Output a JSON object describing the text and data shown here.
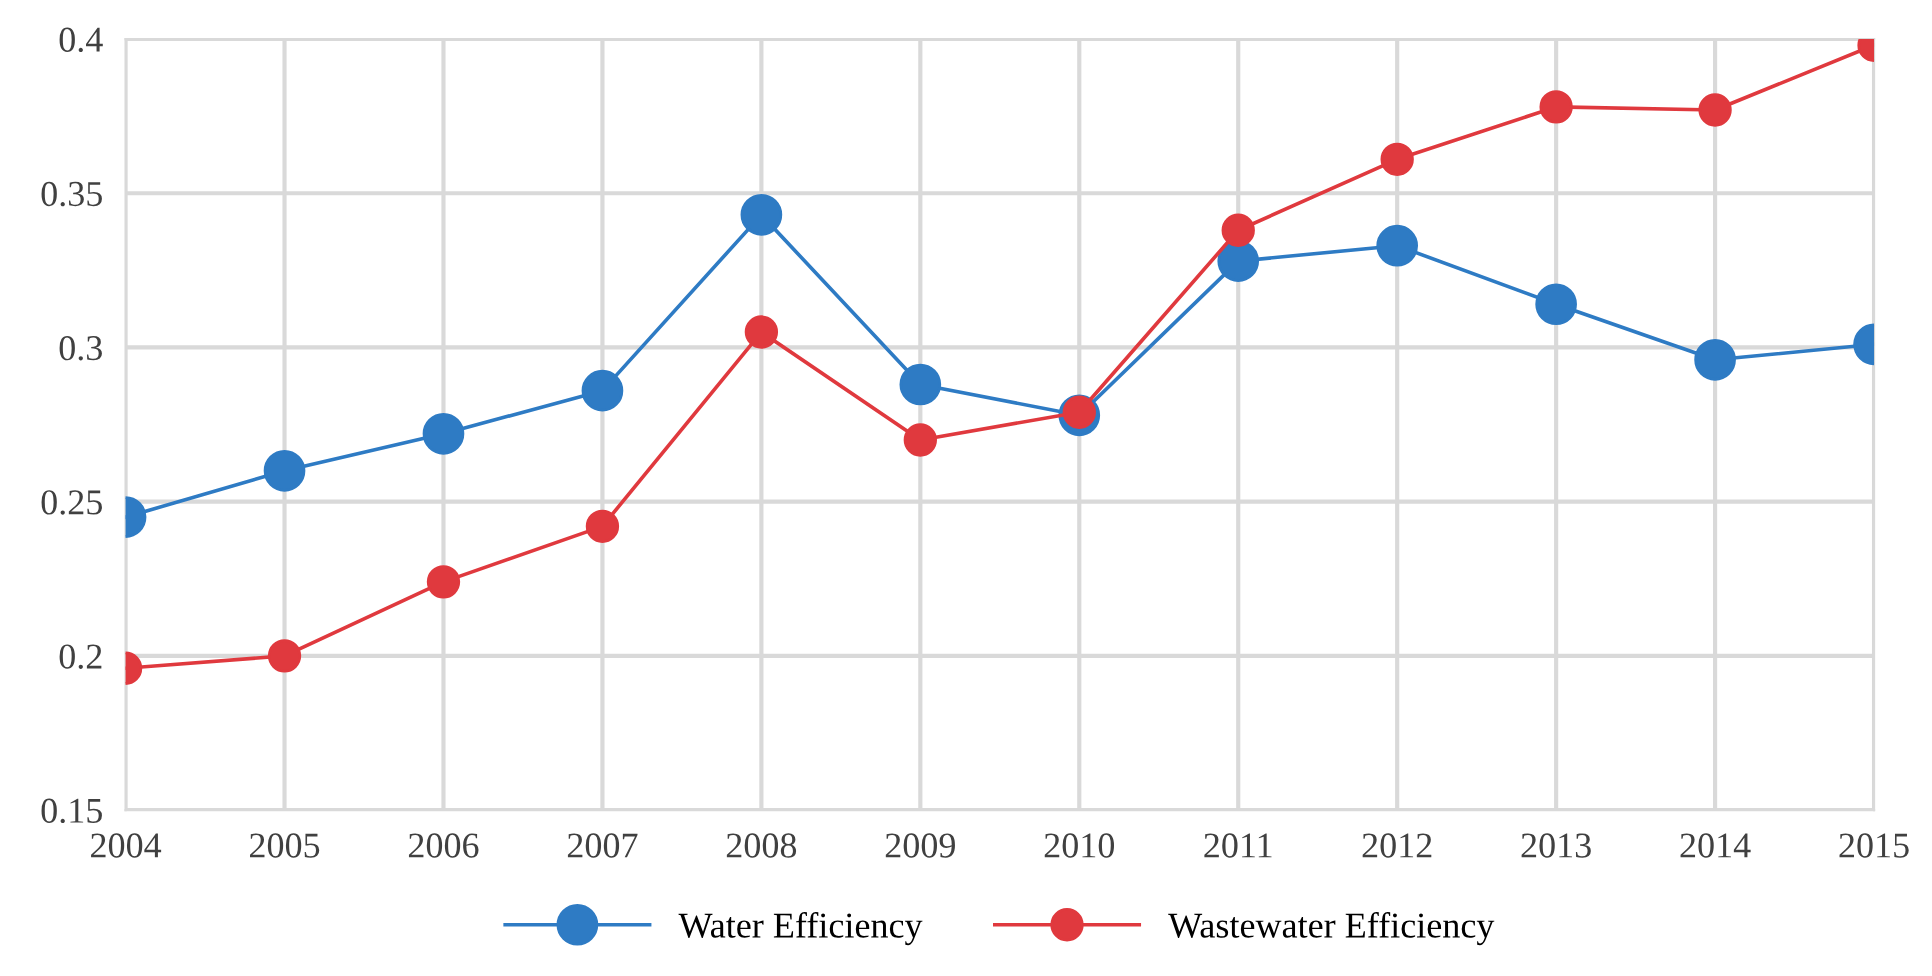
{
  "chart_data": {
    "type": "line",
    "x": [
      2004,
      2005,
      2006,
      2007,
      2008,
      2009,
      2010,
      2011,
      2012,
      2013,
      2014,
      2015
    ],
    "series": [
      {
        "name": "Water Efficiency",
        "color": "#2e7bc4",
        "values": [
          0.245,
          0.26,
          0.272,
          0.286,
          0.343,
          0.288,
          0.278,
          0.328,
          0.333,
          0.314,
          0.296,
          0.301
        ]
      },
      {
        "name": "Wastewater Efficiency",
        "color": "#e0393e",
        "values": [
          0.196,
          0.2,
          0.224,
          0.242,
          0.305,
          0.27,
          0.279,
          0.338,
          0.361,
          0.378,
          0.377,
          0.398
        ]
      }
    ],
    "xlim": [
      2004,
      2015
    ],
    "xticks": [
      2004,
      2005,
      2006,
      2007,
      2008,
      2009,
      2010,
      2011,
      2012,
      2013,
      2014,
      2015
    ],
    "ylim": [
      0.15,
      0.4
    ],
    "yticks": [
      0.15,
      0.2,
      0.25,
      0.3,
      0.35,
      0.4
    ],
    "grid": true,
    "legend": "bottom",
    "marker": "circle",
    "line_style": "solid"
  }
}
